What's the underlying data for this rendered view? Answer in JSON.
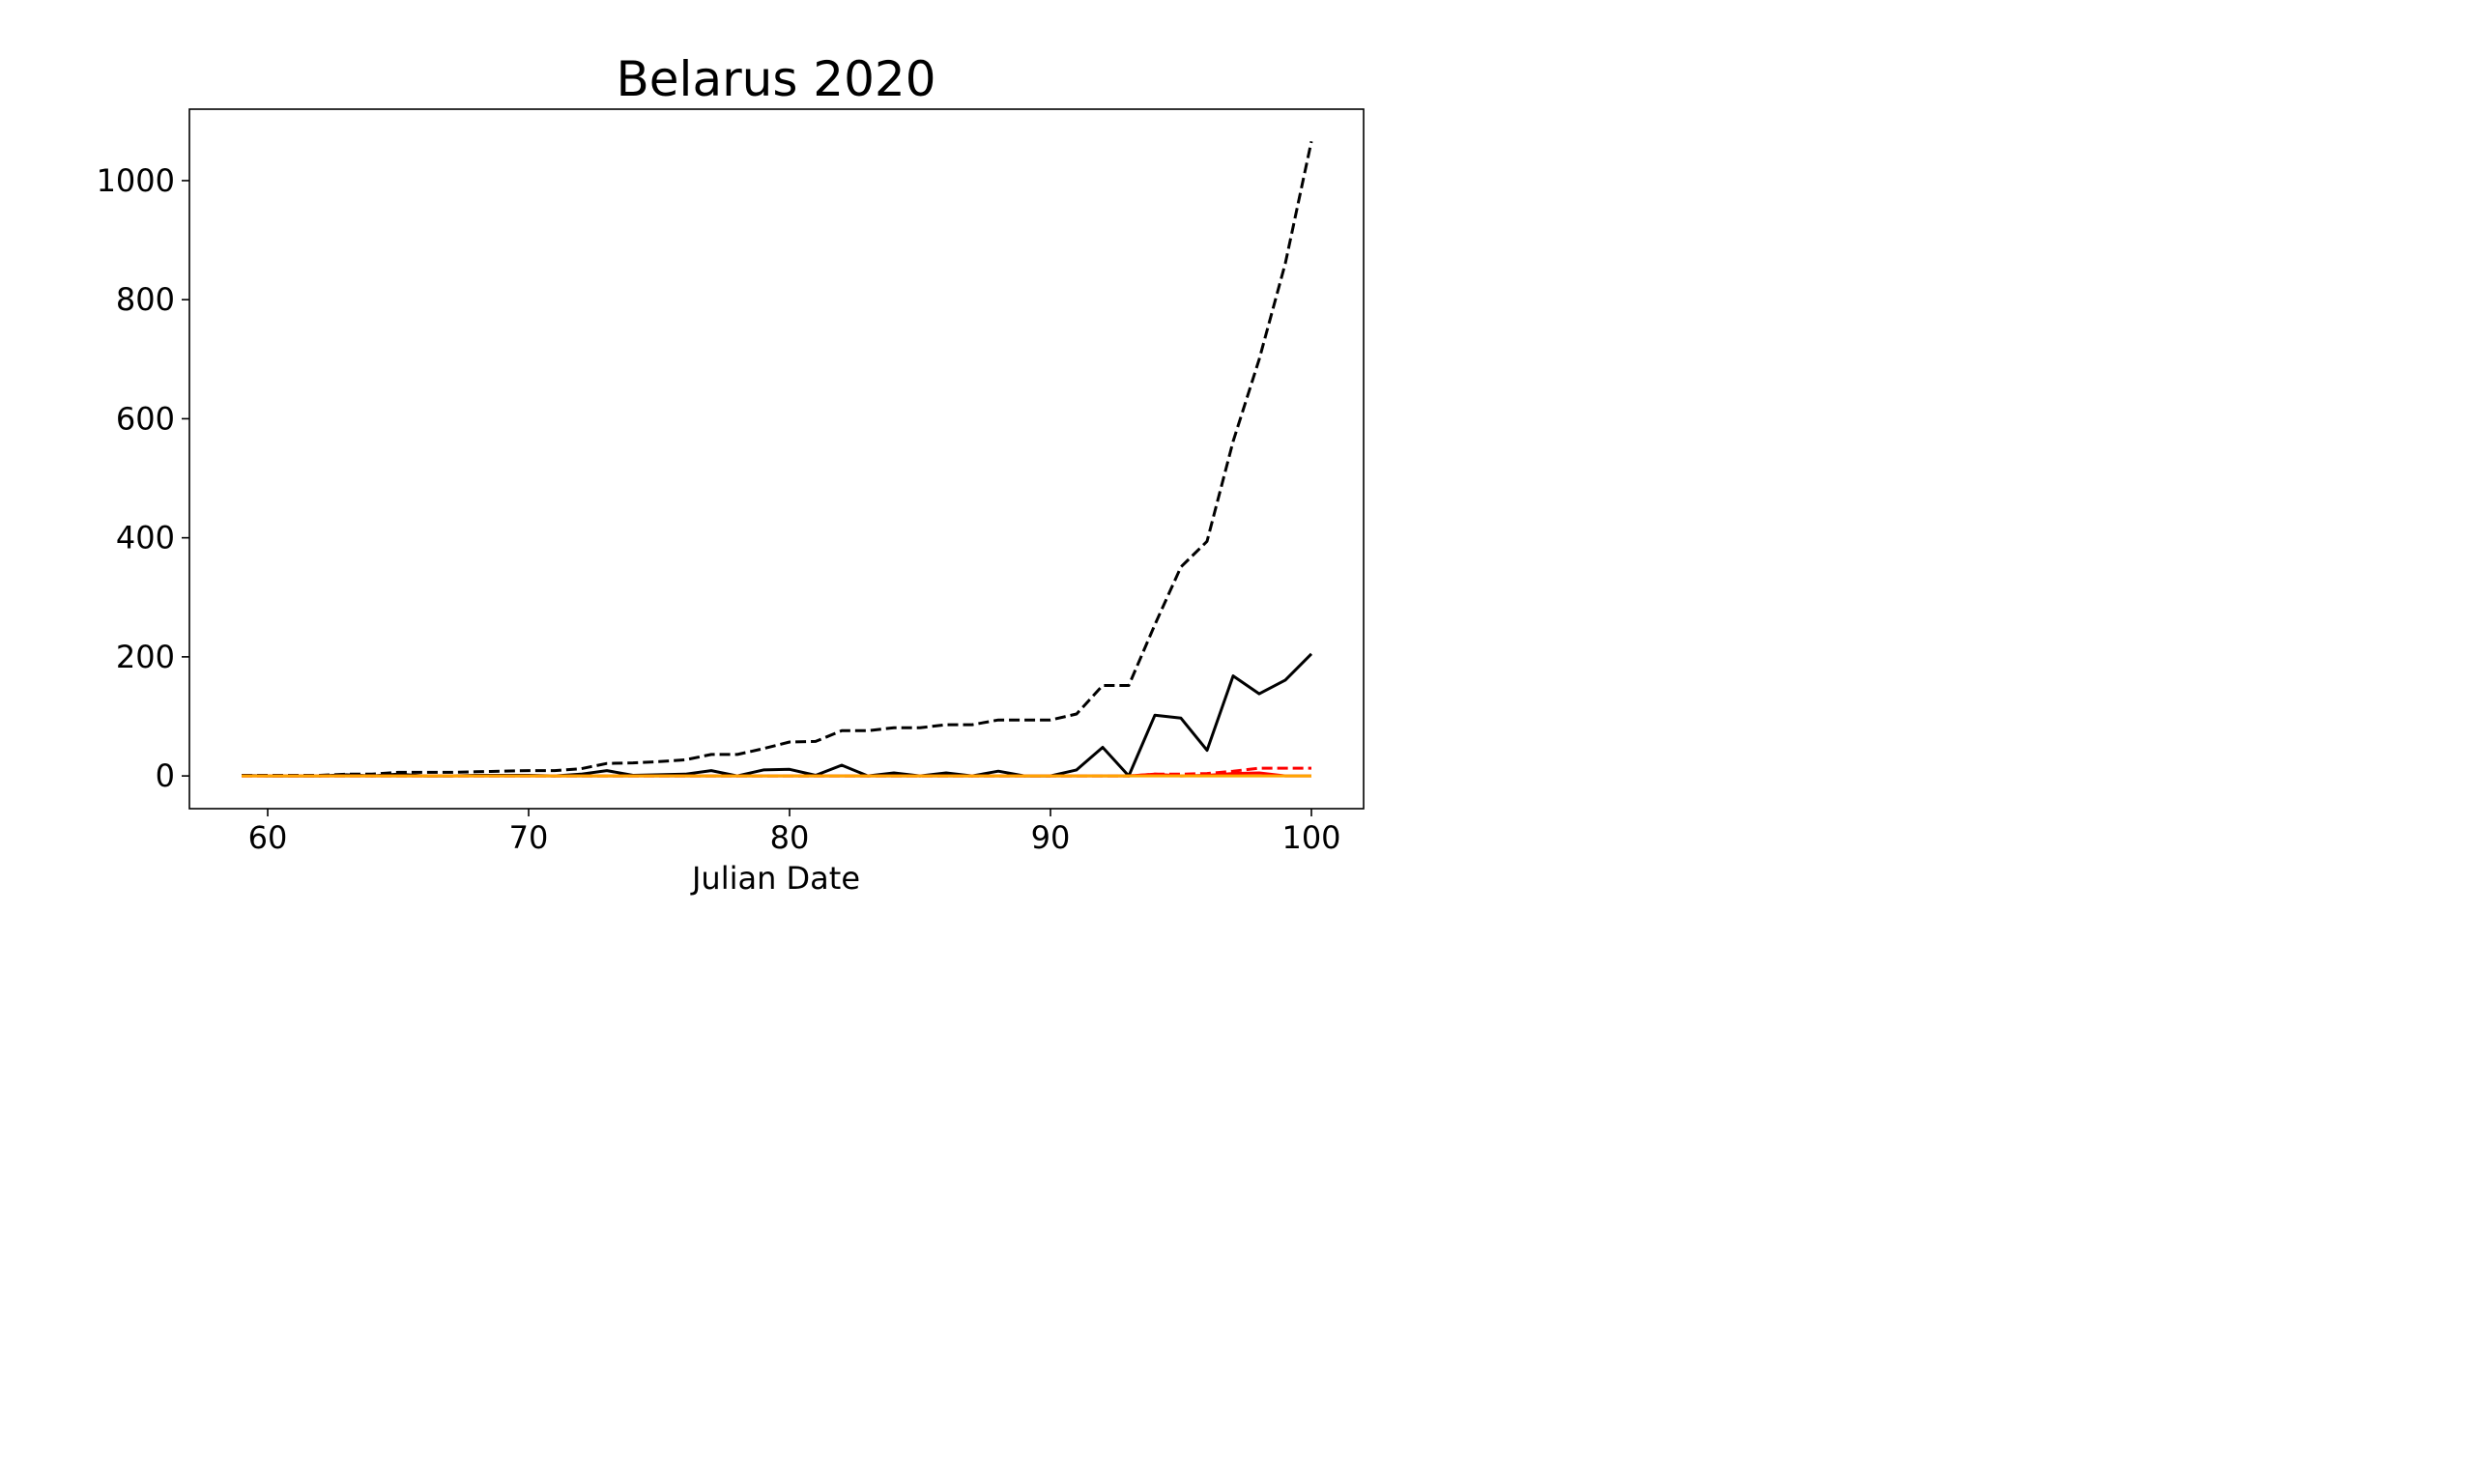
{
  "chart_data": {
    "type": "line",
    "title": "Belarus 2020",
    "xlabel": "Julian Date",
    "ylabel": "",
    "xlim": [
      57,
      102
    ],
    "ylim": [
      -55,
      1120
    ],
    "xticks": [
      60,
      70,
      80,
      90,
      100
    ],
    "yticks": [
      0,
      200,
      400,
      600,
      800,
      1000
    ],
    "grid": false,
    "legend": "none",
    "series": [
      {
        "color": "#000000",
        "style": "dashed",
        "x": [
          59,
          60,
          61,
          62,
          63,
          64,
          65,
          66,
          67,
          68,
          69,
          70,
          71,
          72,
          73,
          74,
          75,
          76,
          77,
          78,
          79,
          80,
          81,
          82,
          83,
          84,
          85,
          86,
          87,
          88,
          89,
          90,
          91,
          92,
          93,
          94,
          95,
          96,
          97,
          98,
          99,
          100
        ],
        "values": [
          1,
          1,
          1,
          1,
          3,
          3,
          6,
          6,
          6,
          7,
          8,
          9,
          9,
          12,
          21,
          22,
          24,
          27,
          36,
          36,
          46,
          57,
          58,
          76,
          76,
          81,
          81,
          86,
          86,
          94,
          94,
          94,
          104,
          152,
          152,
          254,
          351,
          394,
          562,
          700,
          861,
          1066
        ]
      },
      {
        "color": "#000000",
        "style": "solid",
        "x": [
          59,
          60,
          61,
          62,
          63,
          64,
          65,
          66,
          67,
          68,
          69,
          70,
          71,
          72,
          73,
          74,
          75,
          76,
          77,
          78,
          79,
          80,
          81,
          82,
          83,
          84,
          85,
          86,
          87,
          88,
          89,
          90,
          91,
          92,
          93,
          94,
          95,
          96,
          97,
          98,
          99,
          100
        ],
        "values": [
          1,
          0,
          0,
          0,
          2,
          0,
          3,
          0,
          0,
          1,
          1,
          1,
          0,
          3,
          9,
          1,
          2,
          3,
          9,
          0,
          10,
          11,
          1,
          18,
          0,
          5,
          0,
          5,
          0,
          8,
          0,
          0,
          10,
          48,
          0,
          102,
          97,
          43,
          168,
          138,
          161,
          205
        ]
      },
      {
        "color": "#ff0000",
        "style": "dashed",
        "x": [
          59,
          60,
          61,
          62,
          63,
          64,
          65,
          66,
          67,
          68,
          69,
          70,
          71,
          72,
          73,
          74,
          75,
          76,
          77,
          78,
          79,
          80,
          81,
          82,
          83,
          84,
          85,
          86,
          87,
          88,
          89,
          90,
          91,
          92,
          93,
          94,
          95,
          96,
          97,
          98,
          99,
          100
        ],
        "values": [
          0,
          0,
          0,
          0,
          0,
          0,
          0,
          0,
          0,
          0,
          0,
          0,
          0,
          0,
          0,
          0,
          0,
          0,
          0,
          0,
          0,
          0,
          0,
          0,
          0,
          0,
          0,
          0,
          0,
          0,
          0,
          0,
          0,
          0,
          0,
          3,
          3,
          4,
          8,
          13,
          13,
          13
        ]
      },
      {
        "color": "#ff0000",
        "style": "solid",
        "x": [
          59,
          60,
          61,
          62,
          63,
          64,
          65,
          66,
          67,
          68,
          69,
          70,
          71,
          72,
          73,
          74,
          75,
          76,
          77,
          78,
          79,
          80,
          81,
          82,
          83,
          84,
          85,
          86,
          87,
          88,
          89,
          90,
          91,
          92,
          93,
          94,
          95,
          96,
          97,
          98,
          99,
          100
        ],
        "values": [
          0,
          0,
          0,
          0,
          0,
          0,
          0,
          0,
          0,
          0,
          0,
          0,
          0,
          0,
          0,
          0,
          0,
          0,
          0,
          0,
          0,
          0,
          0,
          0,
          0,
          0,
          0,
          0,
          0,
          0,
          0,
          0,
          0,
          0,
          0,
          3,
          0,
          1,
          4,
          5,
          0,
          0
        ]
      },
      {
        "color": "#ffa500",
        "style": "solid",
        "x": [
          59,
          100
        ],
        "values": [
          0,
          0
        ]
      }
    ]
  }
}
